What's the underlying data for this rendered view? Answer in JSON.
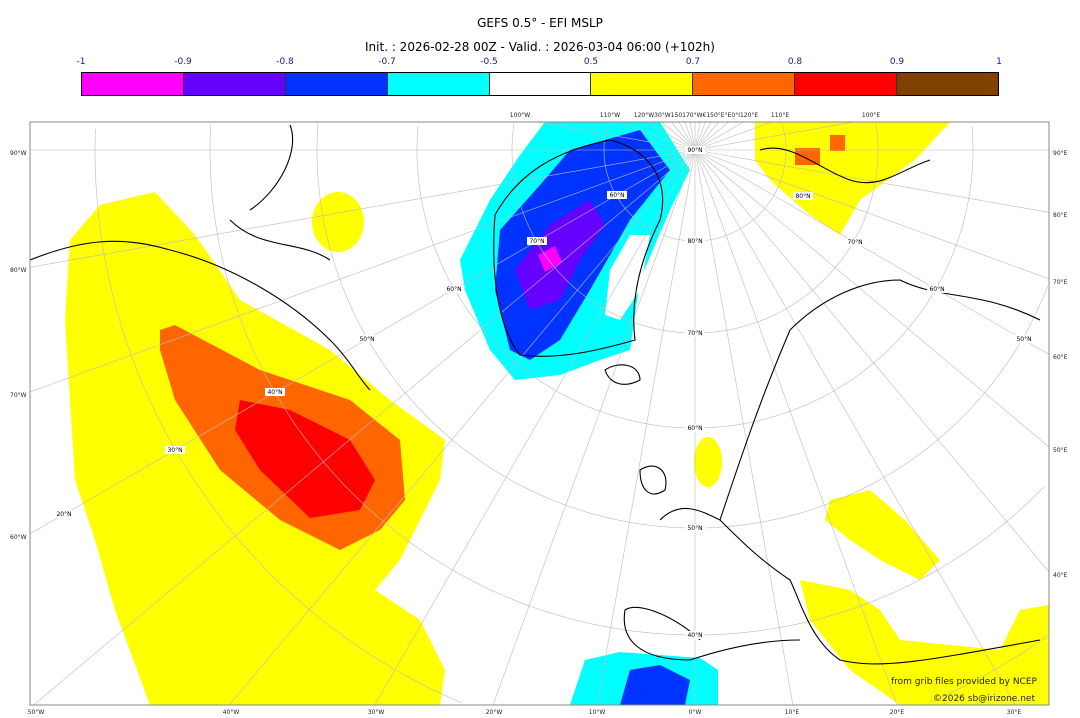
{
  "title": "GEFS 0.5° - EFI MSLP",
  "subtitle": "Init. : 2026-02-28 00Z - Valid. : 2026-03-04 06:00 (+102h)",
  "colorbar": {
    "ticks": [
      "-1",
      "-0.9",
      "-0.8",
      "-0.7",
      "-0.5",
      "0.5",
      "0.7",
      "0.8",
      "0.9",
      "1"
    ],
    "colors": [
      "#ff00ff",
      "#6600ff",
      "#0033ff",
      "#00ffff",
      "#ffffff",
      "#ffff00",
      "#ff6600",
      "#ff0000",
      "#804000"
    ]
  },
  "axes": {
    "left": [
      "90°W",
      "80°W",
      "70°W",
      "60°W"
    ],
    "right": [
      "90°E",
      "80°E",
      "70°E",
      "60°E",
      "50°E",
      "40°E"
    ],
    "bottom": [
      "50°W",
      "40°W",
      "30°W",
      "20°W",
      "10°W",
      "0°W",
      "10°E",
      "20°E",
      "30°E"
    ],
    "top": [
      "100°W",
      "110°W",
      "120°W30°W150170°W€150°E°E0°I120°E",
      "110°E",
      "100°E"
    ]
  },
  "grid_labels": [
    "90°N",
    "80°N",
    "70°N",
    "60°N",
    "50°N",
    "40°N",
    "60°N",
    "70°N",
    "40°N",
    "30°N",
    "20°N",
    "50°N",
    "60°N",
    "80°N",
    "70°N",
    "60°N",
    "50°N"
  ],
  "credits": {
    "source": "from grib files provided by NCEP",
    "copyright": "©2026 sb@irizone.net"
  }
}
